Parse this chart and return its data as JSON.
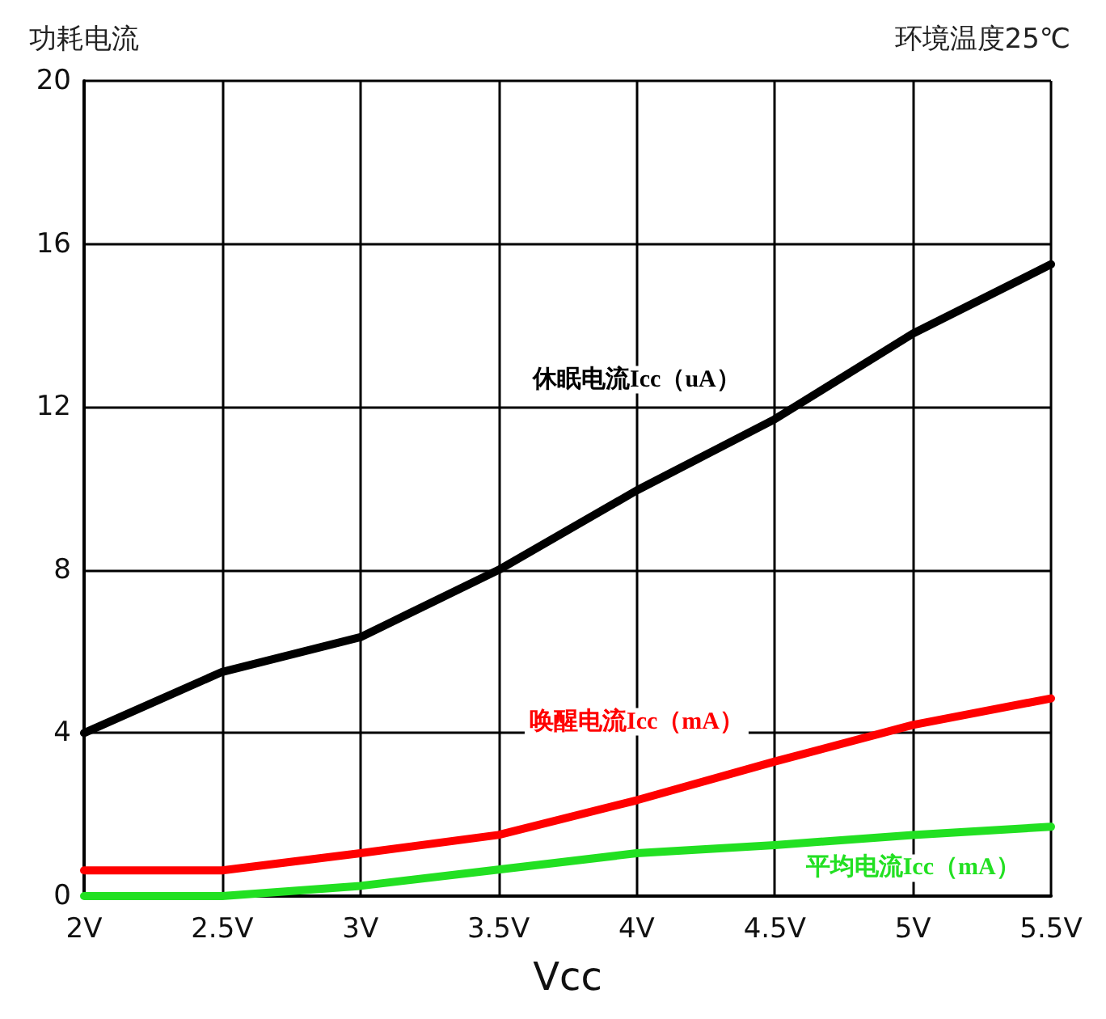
{
  "chart_data": {
    "type": "line",
    "ylabel": "功耗电流",
    "xlabel": "Vcc",
    "annotations": [
      "环境温度25℃"
    ],
    "categories": [
      "2V",
      "2.5V",
      "3V",
      "3.5V",
      "4V",
      "4.5V",
      "5V",
      "5.5V"
    ],
    "series": [
      {
        "name": "休眠电流Icc（uA）",
        "color": "#000000",
        "values": [
          4.0,
          5.5,
          6.35,
          8.0,
          9.95,
          11.7,
          13.8,
          15.5
        ]
      },
      {
        "name": "唤醒电流Icc（mA）",
        "color": "#ff0000",
        "values": [
          0.63,
          0.63,
          1.05,
          1.5,
          2.35,
          3.3,
          4.2,
          4.85
        ]
      },
      {
        "name": "平均电流Icc（mA）",
        "color": "#22e022",
        "values": [
          0,
          0,
          0.25,
          0.65,
          1.05,
          1.25,
          1.5,
          1.7
        ]
      }
    ],
    "ylim": [
      0,
      20
    ],
    "yticks": [
      0,
      4,
      8,
      12,
      16,
      20
    ],
    "grid": true,
    "legend": false,
    "marker": "none",
    "line_style": "solid"
  }
}
